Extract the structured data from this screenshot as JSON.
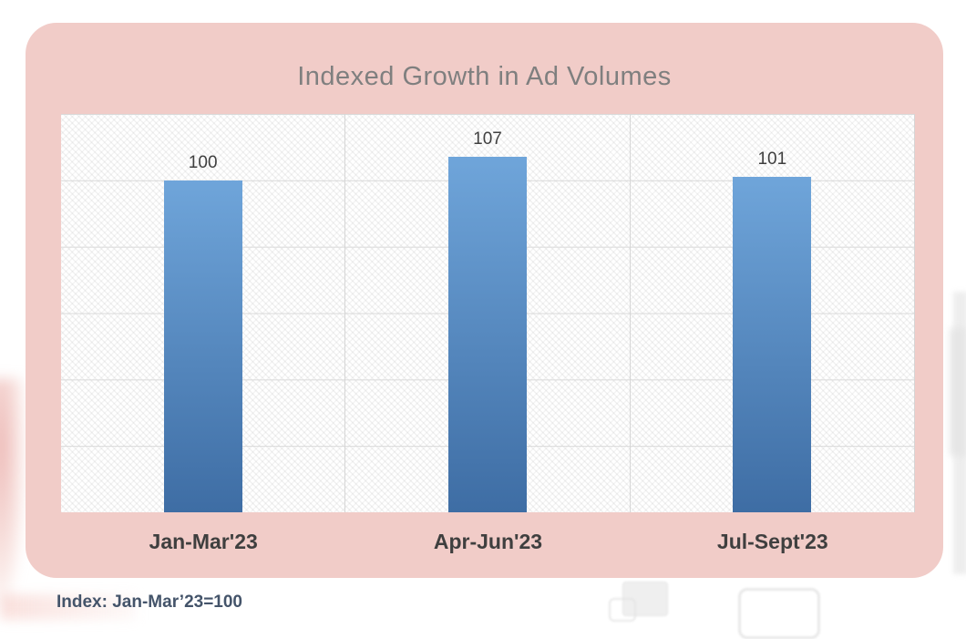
{
  "chart_data": {
    "type": "bar",
    "title": "Indexed Growth in Ad Volumes",
    "categories": [
      "Jan-Mar'23",
      "Apr-Jun'23",
      "Jul-Sept'23"
    ],
    "values": [
      100,
      107,
      101
    ],
    "data_labels": [
      "100",
      "107",
      "101"
    ],
    "xlabel": "",
    "ylabel": "",
    "ylim": [
      0,
      120
    ],
    "gridline_step": 20,
    "grid": "horizontal lines every 20 units, vertical lines at category boundaries, no axis tick labels",
    "legend": "none",
    "footnote": "Index: Jan-Mar’23=100"
  },
  "colors": {
    "card_bg": "#F1CCC8",
    "title_text": "#7F7F7F",
    "label_text": "#3F3F3F",
    "footnote_text": "#44546A",
    "gridline": "#D9D9D9",
    "bar_top": "#6FA5DA",
    "bar_bottom": "#3E6DA4"
  }
}
